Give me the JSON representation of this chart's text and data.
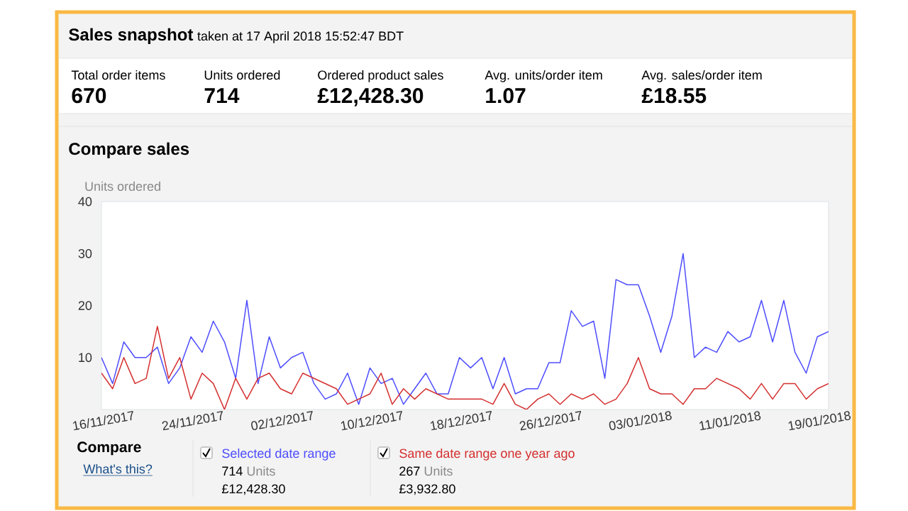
{
  "chart_data": [
    {
      "type": "other",
      "title": "Sales snapshot",
      "subtitle": "taken at 17 April 2018 15:52:47 BDT",
      "annotations": [
        "Total order items",
        "670",
        "Units ordered",
        "714",
        "Ordered product sales",
        "£12,428.30",
        "Avg. units/order item",
        "1.07",
        "Avg. sales/order item",
        "£18.55"
      ]
    },
    {
      "type": "line",
      "title": "Compare sales",
      "ylabel": "Units ordered",
      "x": [
        "2017-11-16",
        "2017-11-17",
        "2017-11-18",
        "2017-11-19",
        "2017-11-20",
        "2017-11-21",
        "2017-11-22",
        "2017-11-23",
        "2017-11-24",
        "2017-11-25",
        "2017-11-26",
        "2017-11-27",
        "2017-11-28",
        "2017-11-29",
        "2017-11-30",
        "2017-12-01",
        "2017-12-02",
        "2017-12-03",
        "2017-12-04",
        "2017-12-05",
        "2017-12-06",
        "2017-12-07",
        "2017-12-08",
        "2017-12-09",
        "2017-12-10",
        "2017-12-11",
        "2017-12-12",
        "2017-12-13",
        "2017-12-14",
        "2017-12-15",
        "2017-12-16",
        "2017-12-17",
        "2017-12-18",
        "2017-12-19",
        "2017-12-20",
        "2017-12-21",
        "2017-12-22",
        "2017-12-23",
        "2017-12-24",
        "2017-12-25",
        "2017-12-26",
        "2017-12-27",
        "2017-12-28",
        "2017-12-29",
        "2017-12-30",
        "2017-12-31",
        "2018-01-01",
        "2018-01-02",
        "2018-01-03",
        "2018-01-04",
        "2018-01-05",
        "2018-01-06",
        "2018-01-07",
        "2018-01-08",
        "2018-01-09",
        "2018-01-10",
        "2018-01-11",
        "2018-01-12",
        "2018-01-13",
        "2018-01-14",
        "2018-01-15",
        "2018-01-16",
        "2018-01-17",
        "2018-01-18",
        "2018-01-19",
        "2018-01-20"
      ],
      "series": [
        {
          "name": "Selected date range",
          "color": "#4d4dff",
          "values": [
            10,
            5,
            13,
            10,
            10,
            12,
            5,
            8,
            14,
            11,
            17,
            13,
            6,
            21,
            5,
            14,
            8,
            10,
            11,
            5,
            2,
            3,
            7,
            1,
            8,
            5,
            6,
            1,
            4,
            7,
            3,
            3,
            10,
            8,
            10,
            4,
            10,
            3,
            4,
            4,
            9,
            9,
            19,
            16,
            17,
            6,
            25,
            24,
            24,
            18,
            11,
            18,
            30,
            10,
            12,
            11,
            15,
            13,
            14,
            21,
            13,
            21,
            11,
            7,
            14,
            15
          ]
        },
        {
          "name": "Same date range one year ago",
          "color": "#d42f2f",
          "values": [
            7,
            4,
            10,
            5,
            6,
            16,
            6,
            10,
            2,
            7,
            5,
            0,
            6,
            2,
            6,
            7,
            4,
            3,
            7,
            6,
            5,
            4,
            1,
            2,
            3,
            7,
            1,
            4,
            2,
            4,
            3,
            2,
            2,
            2,
            2,
            1,
            5,
            1,
            0,
            2,
            3,
            1,
            3,
            2,
            3,
            1,
            2,
            5,
            10,
            4,
            3,
            3,
            1,
            4,
            4,
            6,
            5,
            4,
            2,
            5,
            2,
            5,
            5,
            2,
            4,
            5
          ]
        }
      ],
      "xlim": [
        "2017-11-16",
        "2018-01-20"
      ],
      "xticks": [
        {
          "value": "2017-11-16",
          "label": "16/11/2017"
        },
        {
          "value": "2017-11-24",
          "label": "24/11/2017"
        },
        {
          "value": "2017-12-02",
          "label": "02/12/2017"
        },
        {
          "value": "2017-12-10",
          "label": "10/12/2017"
        },
        {
          "value": "2017-12-18",
          "label": "18/12/2017"
        },
        {
          "value": "2017-12-26",
          "label": "26/12/2017"
        },
        {
          "value": "2018-01-03",
          "label": "03/01/2018"
        },
        {
          "value": "2018-01-11",
          "label": "11/01/2018"
        },
        {
          "value": "2018-01-19",
          "label": "19/01/2018"
        }
      ],
      "ylim": [
        0,
        40
      ],
      "yticks": [
        10,
        20,
        30,
        40
      ],
      "legend": "bottom",
      "annotations": [
        "Compare",
        "What's this?",
        "714",
        "Units",
        "£12,428.30",
        "267",
        "Units",
        "£3,932.80"
      ]
    }
  ]
}
